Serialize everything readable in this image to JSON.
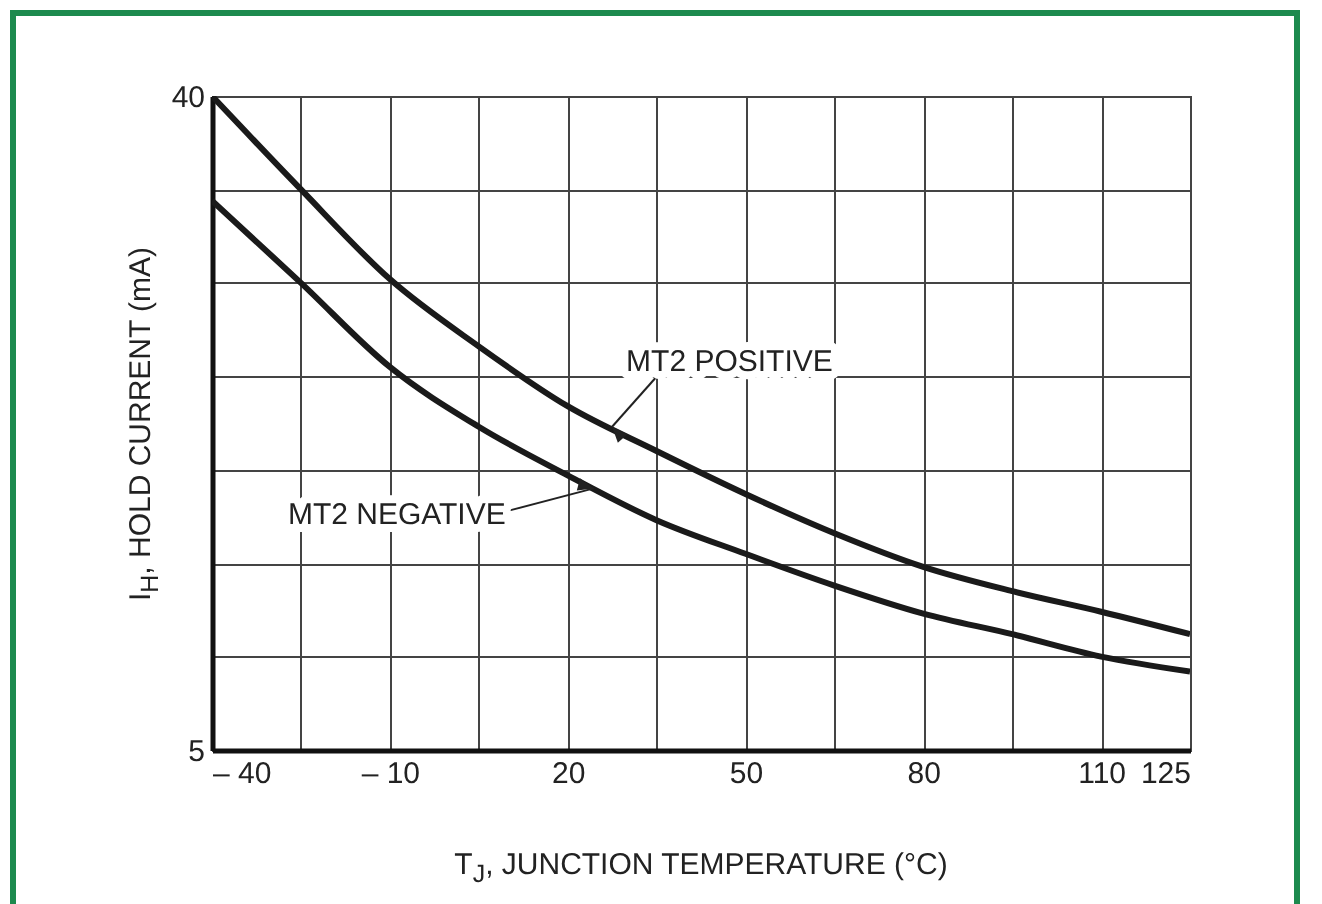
{
  "chart_data": {
    "type": "line",
    "xlabel": "T$_{J}$, JUNCTION TEMPERATURE (°C)",
    "ylabel": "I$_{H}$, HOLD CURRENT (mA)",
    "x": [
      -40,
      -25,
      -10,
      5,
      20,
      35,
      50,
      65,
      80,
      95,
      110,
      125
    ],
    "series": [
      {
        "color": "#1a1a1a",
        "values": [
          40,
          35,
          30.2,
          26.6,
          23.4,
          21,
          18.7,
          16.6,
          14.8,
          13.5,
          12.4,
          11.2
        ]
      },
      {
        "color": "#1a1a1a",
        "values": [
          34.4,
          30,
          25.5,
          22.3,
          19.7,
          17.3,
          15.5,
          13.8,
          12.3,
          11.2,
          10,
          9.2
        ]
      }
    ],
    "annotations": [
      {
        "text": "MT2 POSITIVE",
        "x": 27.5,
        "y": 22.3
      },
      {
        "text": "MT2 NEGATIVE",
        "x": 24.4,
        "y": 19
      }
    ],
    "xlim": [
      -40,
      125
    ],
    "ylim": [
      5,
      40
    ],
    "xticks": [
      {
        "value": -40,
        "label": "– 40"
      },
      {
        "value": -25,
        "label": null
      },
      {
        "value": -10,
        "label": "– 10"
      },
      {
        "value": 5,
        "label": null
      },
      20,
      {
        "value": 35,
        "label": null
      },
      50,
      {
        "value": 65,
        "label": null
      },
      80,
      {
        "value": 95,
        "label": null
      },
      110,
      125
    ],
    "yticks": [
      5,
      {
        "value": 10,
        "label": null
      },
      {
        "value": 15,
        "label": null
      },
      {
        "value": 20,
        "label": null
      },
      {
        "value": 25,
        "label": null
      },
      {
        "value": 30,
        "label": null
      },
      {
        "value": 35,
        "label": null
      },
      40
    ],
    "grid": true,
    "line_style": "solid",
    "marker": "none"
  }
}
